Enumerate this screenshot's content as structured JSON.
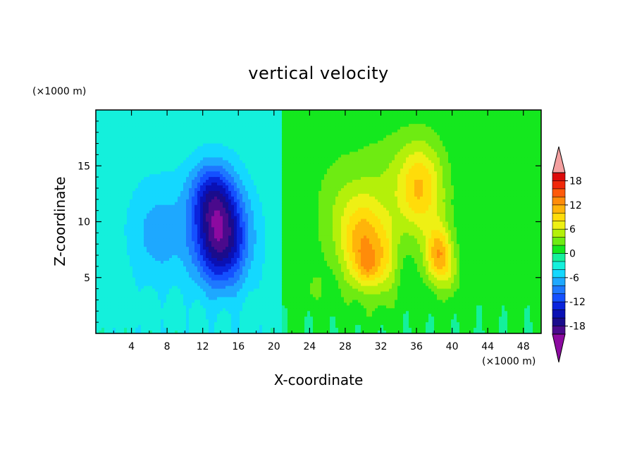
{
  "chart_data": {
    "type": "heatmap",
    "title": "vertical velocity",
    "xlabel": "X-coordinate",
    "ylabel": "Z-coordinate",
    "x_unit": "(×1000 m)",
    "y_unit": "(×1000 m)",
    "xlim": [
      0,
      50
    ],
    "ylim": [
      0,
      20
    ],
    "x_ticks": [
      4,
      8,
      12,
      16,
      20,
      24,
      28,
      32,
      36,
      40,
      44,
      48
    ],
    "y_ticks": [
      5,
      10,
      15
    ],
    "grid": false,
    "colorbar": {
      "placement": "right",
      "extend": "both",
      "levels": [
        -20,
        -18,
        -16,
        -14,
        -12,
        -10,
        -8,
        -6,
        -4,
        -2,
        0,
        2,
        4,
        6,
        8,
        10,
        12,
        14,
        16,
        18,
        20
      ],
      "tick_labels": [
        "18",
        "12",
        "6",
        "0",
        "-6",
        "-12",
        "-18"
      ],
      "tick_values": [
        18,
        12,
        6,
        0,
        -6,
        -12,
        -18
      ],
      "colors": [
        "#4a0a8c",
        "#1a0c8c",
        "#0a10b4",
        "#0a24dc",
        "#1450ff",
        "#1e78ff",
        "#1ea8ff",
        "#14d8ff",
        "#14f0dc",
        "#14f09c",
        "#14e81e",
        "#6eeb12",
        "#b4f00a",
        "#eef014",
        "#ffdc0a",
        "#ffb40a",
        "#ff8c0a",
        "#ff5a0a",
        "#f0280a",
        "#dc0a0a"
      ],
      "under_color": "#8c0aa0",
      "over_color": "#f4a0a0"
    },
    "features": [
      {
        "x": 14.0,
        "z": 8.5,
        "amp": -16.0,
        "sx": 3.0,
        "sz": 4.2
      },
      {
        "x": 13.0,
        "z": 12.5,
        "amp": -8.0,
        "sx": 2.5,
        "sz": 3.0
      },
      {
        "x": 7.0,
        "z": 9.0,
        "amp": -4.0,
        "sx": 3.2,
        "sz": 4.5
      },
      {
        "x": 30.0,
        "z": 8.0,
        "amp": 10.0,
        "sx": 2.3,
        "sz": 4.0
      },
      {
        "x": 30.5,
        "z": 6.0,
        "amp": 4.0,
        "sx": 1.2,
        "sz": 1.5
      },
      {
        "x": 32.5,
        "z": 6.5,
        "amp": 5.0,
        "sx": 1.4,
        "sz": 3.5
      },
      {
        "x": 38.5,
        "z": 7.0,
        "amp": 11.0,
        "sx": 1.5,
        "sz": 2.6
      },
      {
        "x": 36.5,
        "z": 13.0,
        "amp": 8.0,
        "sx": 2.5,
        "sz": 4.0
      },
      {
        "x": 33.0,
        "z": 13.0,
        "amp": 3.0,
        "sx": 5.0,
        "sz": 5.0
      },
      {
        "x": 27.0,
        "z": 10.5,
        "amp": 2.5,
        "sx": 2.5,
        "sz": 5.0
      },
      {
        "x": 40.0,
        "z": 5.0,
        "amp": 2.5,
        "sx": 1.0,
        "sz": 2.0
      },
      {
        "x": 24.5,
        "z": 4.0,
        "amp": 2.0,
        "sx": 1.0,
        "sz": 1.3
      }
    ],
    "background_value": -3.0
  }
}
